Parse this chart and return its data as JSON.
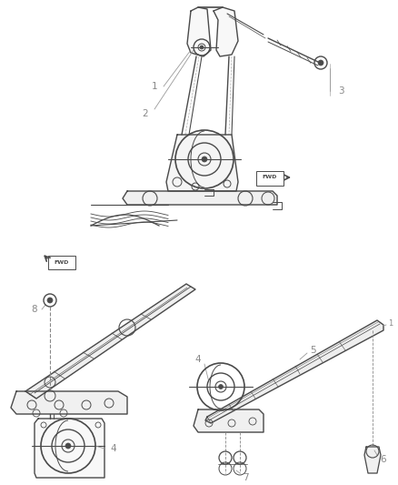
{
  "background_color": "#ffffff",
  "line_color": "#4a4a4a",
  "label_color": "#888888",
  "figsize": [
    4.38,
    5.33
  ],
  "dpi": 100
}
